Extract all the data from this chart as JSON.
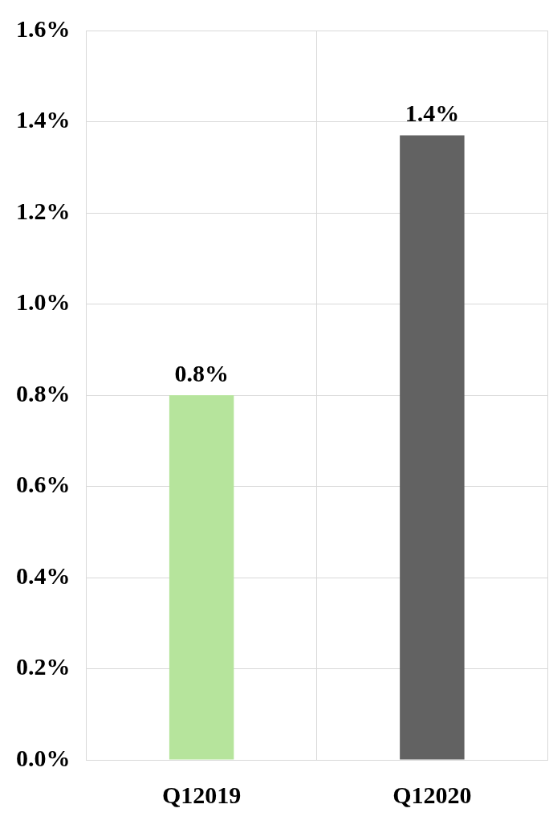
{
  "chart_data": {
    "type": "bar",
    "categories": [
      "Q12019",
      "Q12020"
    ],
    "values": [
      0.8,
      1.37
    ],
    "colors": [
      "#b6e49c",
      "#626262"
    ],
    "value_labels": [
      "0.8%",
      "1.4%"
    ],
    "ylim": [
      0,
      1.6
    ],
    "yticks": [
      {
        "value": 0,
        "label": "0.0%"
      },
      {
        "value": 0.2,
        "label": "0.2%"
      },
      {
        "value": 0.4,
        "label": "0.4%"
      },
      {
        "value": 0.6,
        "label": "0.6%"
      },
      {
        "value": 0.8,
        "label": "0.8%"
      },
      {
        "value": 1,
        "label": "1.0%"
      },
      {
        "value": 1.2,
        "label": "1.2%"
      },
      {
        "value": 1.4,
        "label": "1.4%"
      },
      {
        "value": 1.6,
        "label": "1.6%"
      }
    ],
    "grid": true,
    "legend": false
  }
}
